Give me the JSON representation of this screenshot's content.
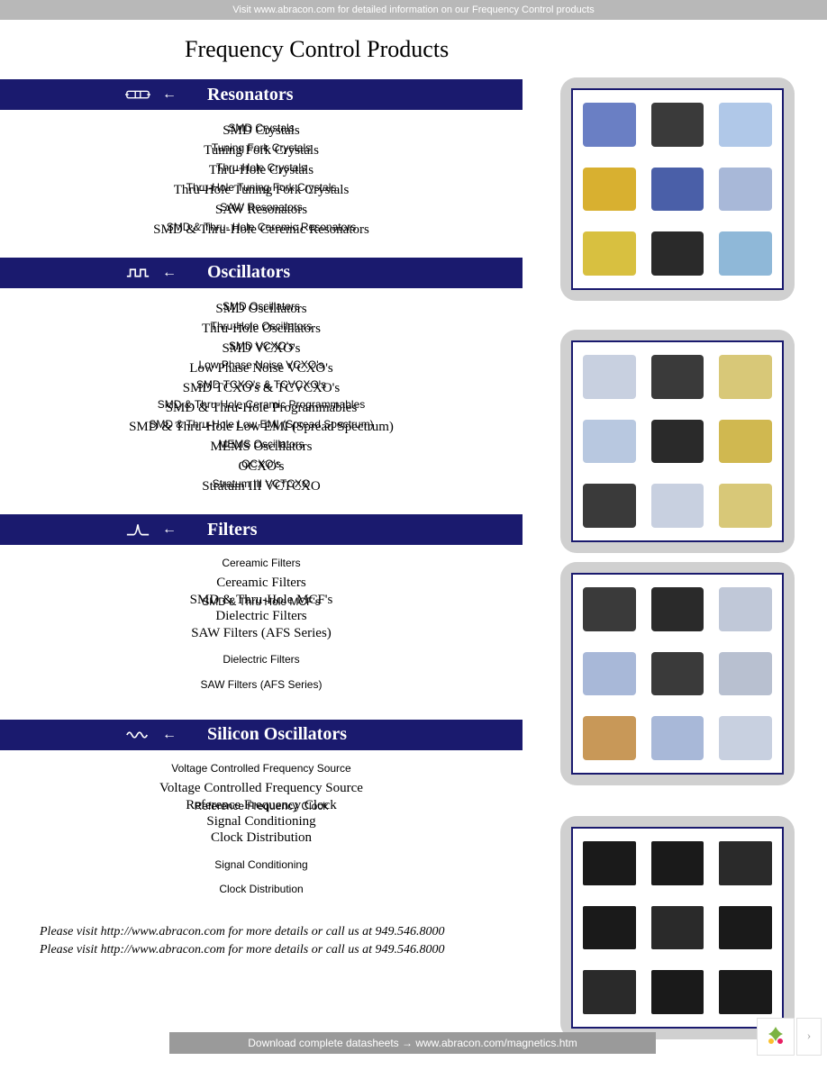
{
  "top_banner": "Visit www.abracon.com for detailed information on our Frequency Control products",
  "page_title": "Frequency Control Products",
  "sections": [
    {
      "title": "Resonators",
      "items_a": [
        "SMD Crystals",
        "Tuning Fork Crystals",
        "Thru-Hole Crystals",
        "Thru-Hole Tuning Fork Crystals",
        "SAW Resonators",
        "SMD & Thru-Hole Ceremic Resonators"
      ],
      "items_b": [
        "SMD Crystals",
        "Tuning Fork Crystals",
        "Thru-Hole Crystals",
        "Thru-Hole Tuning Fork Crystals",
        "SAW Resonators",
        "SMD & Thru- Hole Ceremic Resonators"
      ]
    },
    {
      "title": "Oscillators",
      "items_a": [
        "SMD Oscillators",
        "Thru-Hole Oscillators",
        "SMD VCXO's",
        "Low Phase Noise VCXO's",
        "SMD TCXO's & TCVCXO's",
        "SMD & Thru-Hole Programmables",
        "SMD & Thru-Hole Low EMI (Spread Spectrum)",
        "MEMS Oscillators",
        "OCXO's",
        "Stratum III VCTCXO"
      ],
      "items_b": [
        "SMD Oscillators",
        "Thru-Hole Oscillators",
        "SMD VCXO's",
        "Low Phase Noise VCXO's",
        "SMD TCXO's & TCVCXO's",
        "SMD & Thru-Hole Ceramic Programmables",
        "SMD & Thru-Hole Low EMI (Spread Spectrum)",
        "MEMS Oscillators",
        "OCXO's",
        "Stratum III VCTCXO"
      ]
    },
    {
      "title": "Filters",
      "items_a": [
        "Cereamic Filters",
        "SMD & Thru-Hole MCF's",
        "Dielectric Filters",
        "SAW Filters (AFS Series)"
      ],
      "items_b": [
        "Cereamic Filters",
        "SMD & Thru Hole MCF's",
        "Dielectric Filters",
        "SAW Filters (AFS Series)"
      ]
    },
    {
      "title": "Silicon Oscillators",
      "items_a": [
        "Voltage Controlled Frequency Source",
        "Reference Frequency Clock",
        "Signal Conditioning",
        "Clock Distribution"
      ],
      "items_b": [
        "Voltage Controlled Frequency Source",
        "Reference Frequency Clock",
        "Signal Conditioning",
        "Clock Distribution"
      ]
    }
  ],
  "footer_line": "Please visit http://www.abracon.com for more details or call us at 949.546.8000",
  "bottom_banner": "Download complete datasheets → www.abracon.com/magnetics.htm",
  "colors": {
    "header_bg": "#1a1a6e",
    "banner_bg": "#b8b8b8",
    "bottom_banner_bg": "#9a9a9a",
    "panel_bg": "#d0d0d0",
    "panel_border": "#1a1a6e"
  },
  "component_colors": {
    "resonators": [
      "#6a7fc4",
      "#3a3a3a",
      "#b0c8e8",
      "#d8b030",
      "#4a5fa8",
      "#a8b8d8",
      "#d8c040",
      "#2a2a2a",
      "#8fb8d8"
    ],
    "oscillators": [
      "#c8d0e0",
      "#3a3a3a",
      "#d8c878",
      "#b8c8e0",
      "#2a2a2a",
      "#d0b850",
      "#3a3a3a",
      "#c8d0e0",
      "#d8c878"
    ],
    "filters": [
      "#3a3a3a",
      "#2a2a2a",
      "#c0c8d8",
      "#a8b8d8",
      "#3a3a3a",
      "#b8c0d0",
      "#c89858",
      "#a8b8d8",
      "#c8d0e0"
    ],
    "silicon": [
      "#1a1a1a",
      "#1a1a1a",
      "#2a2a2a",
      "#1a1a1a",
      "#2a2a2a",
      "#1a1a1a",
      "#2a2a2a",
      "#1a1a1a",
      "#1a1a1a"
    ]
  }
}
